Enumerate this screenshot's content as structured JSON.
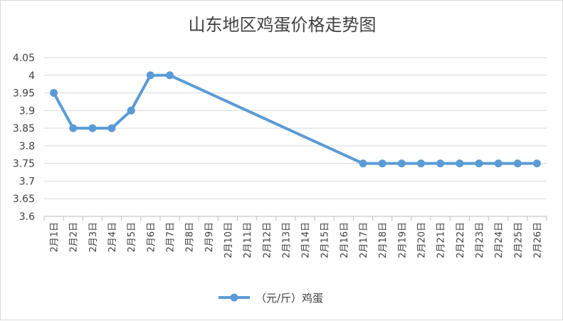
{
  "chart_data": {
    "type": "line",
    "title": "山东地区鸡蛋价格走势图",
    "xlabel": "",
    "ylabel": "",
    "ylim": [
      3.6,
      4.05
    ],
    "yticks": [
      "3.6",
      "3.65",
      "3.7",
      "3.75",
      "3.8",
      "3.85",
      "3.9",
      "3.95",
      "4",
      "4.05"
    ],
    "grid": true,
    "legend": "bottom",
    "categories": [
      "2月1日",
      "2月2日",
      "2月3日",
      "2月4日",
      "2月5日",
      "2月6日",
      "2月7日",
      "2月8日",
      "2月9日",
      "2月10日",
      "2月11日",
      "2月12日",
      "2月13日",
      "2月14日",
      "2月15日",
      "2月16日",
      "2月17日",
      "2月18日",
      "2月19日",
      "2月20日",
      "2月21日",
      "2月22日",
      "2月23日",
      "2月24日",
      "2月25日",
      "2月26日"
    ],
    "series": [
      {
        "name": "（元/斤）鸡蛋",
        "color": "#5b9bd5",
        "values": [
          3.95,
          3.85,
          3.85,
          3.85,
          3.9,
          4.0,
          4.0,
          null,
          null,
          null,
          null,
          null,
          null,
          null,
          null,
          null,
          3.75,
          3.75,
          3.75,
          3.75,
          3.75,
          3.75,
          3.75,
          3.75,
          3.75,
          3.75
        ]
      }
    ]
  }
}
